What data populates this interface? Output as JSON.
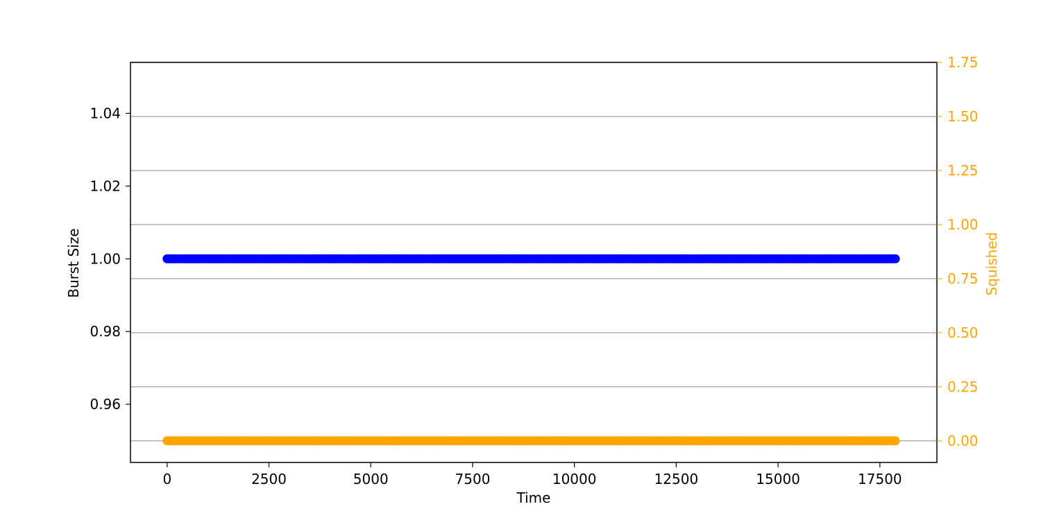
{
  "chart_data": {
    "type": "scatter",
    "title": "",
    "xlabel": "Time",
    "ylabel_left": "Burst Size",
    "ylabel_right": "Squished",
    "xlim": [
      -900,
      18900
    ],
    "ylim_left": [
      0.944,
      1.054
    ],
    "ylim_right": [
      -0.1,
      1.75
    ],
    "x_ticks": [
      0,
      2500,
      5000,
      7500,
      10000,
      12500,
      15000,
      17500
    ],
    "x_tick_labels": [
      "0",
      "2500",
      "5000",
      "7500",
      "10000",
      "12500",
      "15000",
      "17500"
    ],
    "y_left_ticks": [
      0.96,
      0.98,
      1.0,
      1.02,
      1.04
    ],
    "y_left_tick_labels": [
      "0.96",
      "0.98",
      "1.00",
      "1.02",
      "1.04"
    ],
    "y_right_ticks": [
      0.0,
      0.25,
      0.5,
      0.75,
      1.0,
      1.25,
      1.5,
      1.75
    ],
    "y_right_tick_labels": [
      "0.00",
      "0.25",
      "0.50",
      "0.75",
      "1.00",
      "1.25",
      "1.50",
      "1.75"
    ],
    "grid": "horizontal lines at right-axis ticks",
    "series": [
      {
        "axis": "left",
        "color": "#0000FF",
        "x_range": [
          0,
          17900
        ],
        "y": 1.0
      },
      {
        "axis": "right",
        "color": "#FFA500",
        "x_range": [
          0,
          17900
        ],
        "y": 0.0
      }
    ],
    "colors": {
      "left_axis": "#000000",
      "right_axis": "#FFA500",
      "grid": "#b0b0b0"
    }
  }
}
